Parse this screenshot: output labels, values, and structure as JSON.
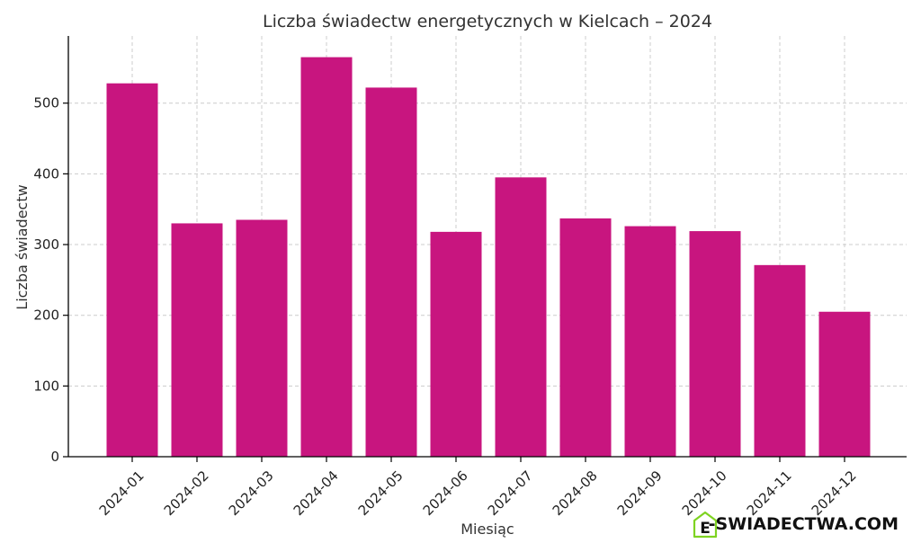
{
  "chart_data": {
    "type": "bar",
    "title": "Liczba świadectw energetycznych w Kielcach – 2024",
    "xlabel": "Miesiąc",
    "ylabel": "Liczba świadectw",
    "categories": [
      "2024-01",
      "2024-02",
      "2024-03",
      "2024-04",
      "2024-05",
      "2024-06",
      "2024-07",
      "2024-08",
      "2024-09",
      "2024-10",
      "2024-11",
      "2024-12"
    ],
    "values": [
      528,
      330,
      335,
      565,
      522,
      318,
      395,
      337,
      326,
      319,
      271,
      205
    ],
    "ylim": [
      0,
      595
    ],
    "yticks": [
      0,
      100,
      200,
      300,
      400,
      500
    ],
    "bar_color": "#c8157f",
    "grid": true
  },
  "watermark": {
    "text": "E-SWIADECTWA.COM",
    "icon": "house-e-icon",
    "icon_color": "#7ed321"
  }
}
